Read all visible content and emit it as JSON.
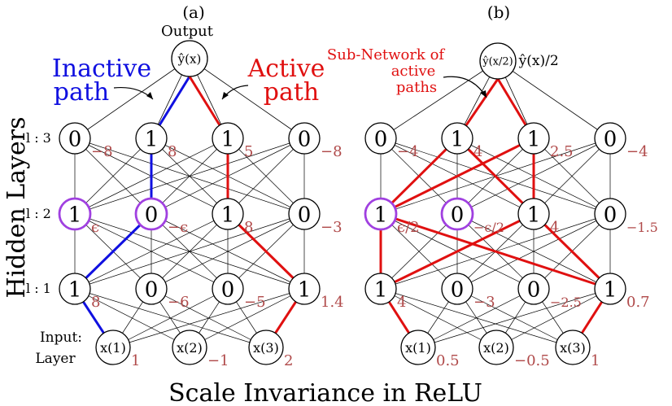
{
  "panel_labels": {
    "a": "(a)",
    "b": "(b)"
  },
  "caption": "Scale Invariance in ReLU",
  "side_title": "Hidden Layers",
  "layer_labels": {
    "l3": "l : 3",
    "l2": "l : 2",
    "l1": "l : 1"
  },
  "panel_a": {
    "output_word": "Output",
    "output_node": "ŷ(x)",
    "inactive_label": [
      "Inactive",
      "path"
    ],
    "active_label": [
      "Active",
      "path"
    ],
    "l3": {
      "nodes": [
        "0",
        "1",
        "1",
        "0"
      ],
      "weights": [
        "−8",
        "8",
        "5",
        "−8"
      ]
    },
    "l2": {
      "nodes": [
        "1",
        "0",
        "1",
        "0"
      ],
      "weights": [
        "ϵ",
        "−ϵ",
        "8",
        "−3"
      ]
    },
    "l1": {
      "nodes": [
        "1",
        "0",
        "0",
        "1"
      ],
      "weights": [
        "8",
        "−6",
        "−5",
        "1.4"
      ]
    },
    "input_title": [
      "Input:",
      "Layer"
    ],
    "inputs": {
      "nodes": [
        "x(1)",
        "x(2)",
        "x(3)"
      ],
      "values": [
        "1",
        "−1",
        "2"
      ]
    }
  },
  "panel_b": {
    "output_node": "ŷ(x/2)",
    "output_eq": "= ŷ(x)/2",
    "subnet_label": [
      "Sub-Network of",
      "active",
      "paths"
    ],
    "l3": {
      "nodes": [
        "0",
        "1",
        "1",
        "0"
      ],
      "weights": [
        "−4",
        "4",
        "2.5",
        "−4"
      ]
    },
    "l2": {
      "nodes": [
        "1",
        "0",
        "1",
        "0"
      ],
      "weights": [
        "ϵ/2",
        "−ϵ/2",
        "4",
        "−1.5"
      ]
    },
    "l1": {
      "nodes": [
        "1",
        "0",
        "0",
        "1"
      ],
      "weights": [
        "4",
        "−3",
        "−2.5",
        "0.7"
      ]
    },
    "inputs": {
      "nodes": [
        "x(1)",
        "x(2)",
        "x(3)"
      ],
      "values": [
        "0.5",
        "−0.5",
        "1"
      ]
    }
  },
  "colors": {
    "inactive": "#1010e0",
    "active": "#e01010",
    "dead": "#a040e0",
    "weight": "#b04a4a",
    "ink": "#000000"
  }
}
